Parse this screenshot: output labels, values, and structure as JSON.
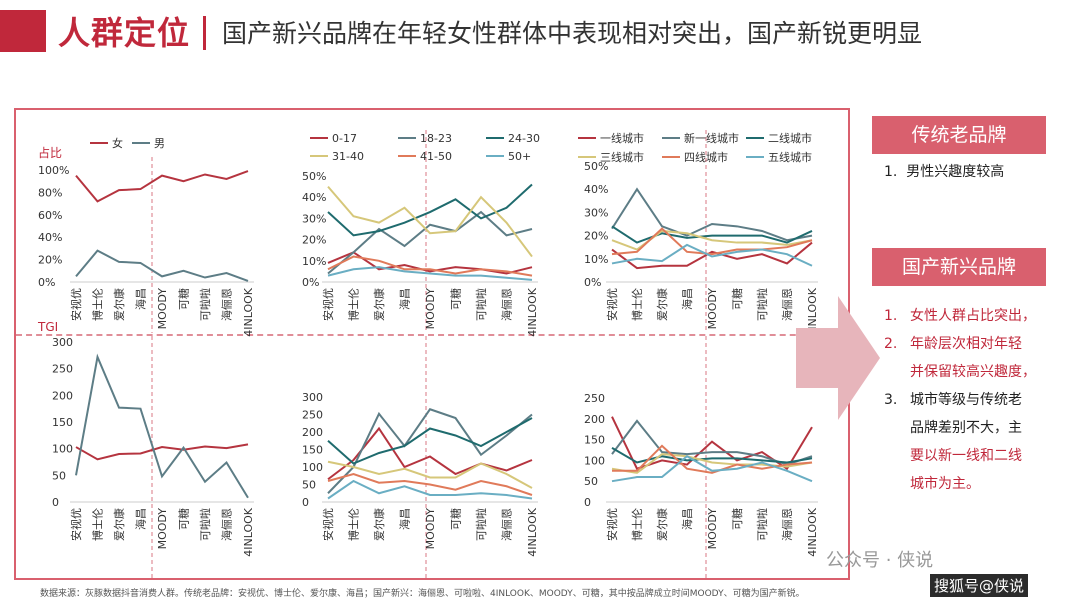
{
  "header": {
    "title": "人群定位",
    "subtitle": "国产新兴品牌在年轻女性群体中表现相对突出，国产新锐更明显"
  },
  "footer": {
    "source": "数据来源：灰豚数据抖音消费人群。传统老品牌：安视优、博士伦、爱尔康、海昌；国产新兴：海俪恩、可啦啦、4INLOOK、MOODY、可糖，其中按品牌成立时间MOODY、可糖为国产新锐。",
    "wechat": "公众号 · 侠说",
    "sohu": "搜狐号@侠说"
  },
  "right_panel": {
    "box1": "传统老品牌",
    "box1_points": [
      {
        "num": "1.",
        "text": "男性兴趣度较高"
      }
    ],
    "box2": "国产新兴品牌",
    "box2_points": [
      {
        "num": "1.",
        "text": "女性人群占比突出，"
      },
      {
        "num": "2.",
        "text": "年龄层次相对年轻"
      },
      {
        "num": "",
        "text": "并保留较高兴趣度，"
      },
      {
        "num": "3.",
        "text": "城市等级与传统老"
      },
      {
        "num": "",
        "text": "品牌差别不大，主"
      },
      {
        "num": "",
        "text": "要以新一线和二线"
      },
      {
        "num": "",
        "text": "城市为主。"
      }
    ]
  },
  "chart_data": [
    {
      "id": "gender-share",
      "type": "line",
      "ylabel": "占比",
      "ylim": [
        0,
        100
      ],
      "yticks": [
        "0%",
        "20%",
        "40%",
        "60%",
        "80%",
        "100%"
      ],
      "ytickvals": [
        0,
        20,
        40,
        60,
        80,
        100
      ],
      "categories": [
        "安视优",
        "博士伦",
        "爱尔康",
        "海昌",
        "MOODY",
        "可糖",
        "可啦啦",
        "海俪恩",
        "4INLOOK"
      ],
      "series": [
        {
          "name": "女",
          "color": "#b5343f",
          "values": [
            95,
            72,
            82,
            83,
            95,
            90,
            96,
            92,
            99
          ]
        },
        {
          "name": "男",
          "color": "#5d7d86",
          "values": [
            5,
            28,
            18,
            17,
            5,
            10,
            4,
            8,
            1
          ]
        }
      ]
    },
    {
      "id": "age-share",
      "type": "line",
      "ylim": [
        0,
        50
      ],
      "yticks": [
        "0%",
        "10%",
        "20%",
        "30%",
        "40%",
        "50%"
      ],
      "ytickvals": [
        0,
        10,
        20,
        30,
        40,
        50
      ],
      "categories": [
        "安视优",
        "博士伦",
        "爱尔康",
        "海昌",
        "MOODY",
        "可糖",
        "可啦啦",
        "海俪恩",
        "4INLOOK"
      ],
      "series": [
        {
          "name": "0-17",
          "color": "#b5343f",
          "values": [
            9,
            14,
            6,
            8,
            5,
            7,
            6,
            4,
            7
          ]
        },
        {
          "name": "18-23",
          "color": "#5d7d86",
          "values": [
            4,
            14,
            25,
            17,
            27,
            24,
            33,
            22,
            25
          ]
        },
        {
          "name": "24-30",
          "color": "#1f6b6e",
          "values": [
            33,
            22,
            24,
            28,
            33,
            39,
            30,
            35,
            46
          ]
        },
        {
          "name": "31-40",
          "color": "#d6c77a",
          "values": [
            45,
            31,
            28,
            35,
            23,
            24,
            40,
            28,
            12
          ]
        },
        {
          "name": "41-50",
          "color": "#e07a5a",
          "values": [
            6,
            12,
            10,
            6,
            6,
            4,
            6,
            5,
            3
          ]
        },
        {
          "name": "50+",
          "color": "#6aaec3",
          "values": [
            3,
            6,
            7,
            5,
            4,
            3,
            3,
            2,
            1
          ]
        }
      ]
    },
    {
      "id": "city-share",
      "type": "line",
      "ylim": [
        0,
        50
      ],
      "yticks": [
        "0%",
        "10%",
        "20%",
        "30%",
        "40%",
        "50%"
      ],
      "ytickvals": [
        0,
        10,
        20,
        30,
        40,
        50
      ],
      "categories": [
        "安视优",
        "博士伦",
        "爱尔康",
        "海昌",
        "MOODY",
        "可糖",
        "可啦啦",
        "海俪恩",
        "4INLOOK"
      ],
      "series": [
        {
          "name": "一线城市",
          "color": "#b5343f",
          "values": [
            14,
            6,
            7,
            7,
            13,
            10,
            12,
            8,
            17
          ]
        },
        {
          "name": "新一线城市",
          "color": "#5d7d86",
          "values": [
            23,
            40,
            24,
            20,
            25,
            24,
            22,
            18,
            20
          ]
        },
        {
          "name": "二线城市",
          "color": "#1f6b6e",
          "values": [
            24,
            17,
            21,
            19,
            20,
            20,
            20,
            17,
            22
          ]
        },
        {
          "name": "三线城市",
          "color": "#d6c77a",
          "values": [
            18,
            14,
            22,
            21,
            18,
            17,
            17,
            16,
            18
          ]
        },
        {
          "name": "四线城市",
          "color": "#e07a5a",
          "values": [
            12,
            13,
            23,
            13,
            12,
            14,
            14,
            15,
            18
          ]
        },
        {
          "name": "五线城市",
          "color": "#6aaec3",
          "values": [
            8,
            10,
            9,
            16,
            11,
            13,
            14,
            12,
            7
          ]
        }
      ]
    },
    {
      "id": "gender-tgi",
      "type": "line",
      "ylabel": "TGI",
      "ylim": [
        0,
        300
      ],
      "yticks": [
        "0",
        "50",
        "100",
        "150",
        "200",
        "250",
        "300"
      ],
      "ytickvals": [
        0,
        50,
        100,
        150,
        200,
        250,
        300
      ],
      "categories": [
        "安视优",
        "博士伦",
        "爱尔康",
        "海昌",
        "MOODY",
        "可糖",
        "可啦啦",
        "海俪恩",
        "4INLOOK"
      ],
      "series": [
        {
          "name": "女",
          "color": "#b5343f",
          "values": [
            103,
            80,
            90,
            91,
            103,
            98,
            104,
            101,
            108
          ]
        },
        {
          "name": "男",
          "color": "#5d7d86",
          "values": [
            50,
            272,
            177,
            175,
            48,
            102,
            38,
            74,
            8
          ]
        }
      ]
    },
    {
      "id": "age-tgi",
      "type": "line",
      "ylim": [
        0,
        300
      ],
      "yticks": [
        "0",
        "50",
        "100",
        "150",
        "200",
        "250",
        "300"
      ],
      "ytickvals": [
        0,
        50,
        100,
        150,
        200,
        250,
        300
      ],
      "categories": [
        "安视优",
        "博士伦",
        "爱尔康",
        "海昌",
        "MOODY",
        "可糖",
        "可啦啦",
        "海俪恩",
        "4INLOOK"
      ],
      "series": [
        {
          "name": "0-17",
          "color": "#b5343f",
          "values": [
            65,
            120,
            210,
            100,
            130,
            80,
            110,
            90,
            120
          ]
        },
        {
          "name": "18-23",
          "color": "#5d7d86",
          "values": [
            25,
            100,
            252,
            160,
            265,
            240,
            135,
            190,
            250
          ]
        },
        {
          "name": "24-30",
          "color": "#1f6b6e",
          "values": [
            175,
            110,
            140,
            160,
            210,
            190,
            160,
            200,
            240
          ]
        },
        {
          "name": "31-40",
          "color": "#d6c77a",
          "values": [
            115,
            100,
            80,
            95,
            70,
            70,
            110,
            80,
            40
          ]
        },
        {
          "name": "41-50",
          "color": "#e07a5a",
          "values": [
            60,
            80,
            55,
            60,
            50,
            35,
            60,
            45,
            20
          ]
        },
        {
          "name": "50+",
          "color": "#6aaec3",
          "values": [
            10,
            60,
            25,
            45,
            20,
            20,
            25,
            20,
            10
          ]
        }
      ]
    },
    {
      "id": "city-tgi",
      "type": "line",
      "ylim": [
        0,
        250
      ],
      "yticks": [
        "0",
        "50",
        "100",
        "150",
        "200",
        "250"
      ],
      "ytickvals": [
        0,
        50,
        100,
        150,
        200,
        250
      ],
      "categories": [
        "安视优",
        "博士伦",
        "爱尔康",
        "海昌",
        "MOODY",
        "可糖",
        "可啦啦",
        "海俪恩",
        "4INLOOK"
      ],
      "series": [
        {
          "name": "一线城市",
          "color": "#b5343f",
          "values": [
            205,
            80,
            100,
            90,
            145,
            100,
            120,
            80,
            180
          ]
        },
        {
          "name": "新一线城市",
          "color": "#5d7d86",
          "values": [
            115,
            195,
            120,
            115,
            120,
            120,
            110,
            90,
            110
          ]
        },
        {
          "name": "二线城市",
          "color": "#1f6b6e",
          "values": [
            130,
            95,
            110,
            100,
            105,
            105,
            100,
            95,
            105
          ]
        },
        {
          "name": "三线城市",
          "color": "#d6c77a",
          "values": [
            80,
            70,
            115,
            110,
            95,
            90,
            90,
            85,
            95
          ]
        },
        {
          "name": "四线城市",
          "color": "#e07a5a",
          "values": [
            75,
            75,
            135,
            80,
            70,
            90,
            80,
            90,
            95
          ]
        },
        {
          "name": "五线城市",
          "color": "#6aaec3",
          "values": [
            50,
            60,
            60,
            110,
            75,
            80,
            95,
            75,
            50
          ]
        }
      ]
    }
  ]
}
